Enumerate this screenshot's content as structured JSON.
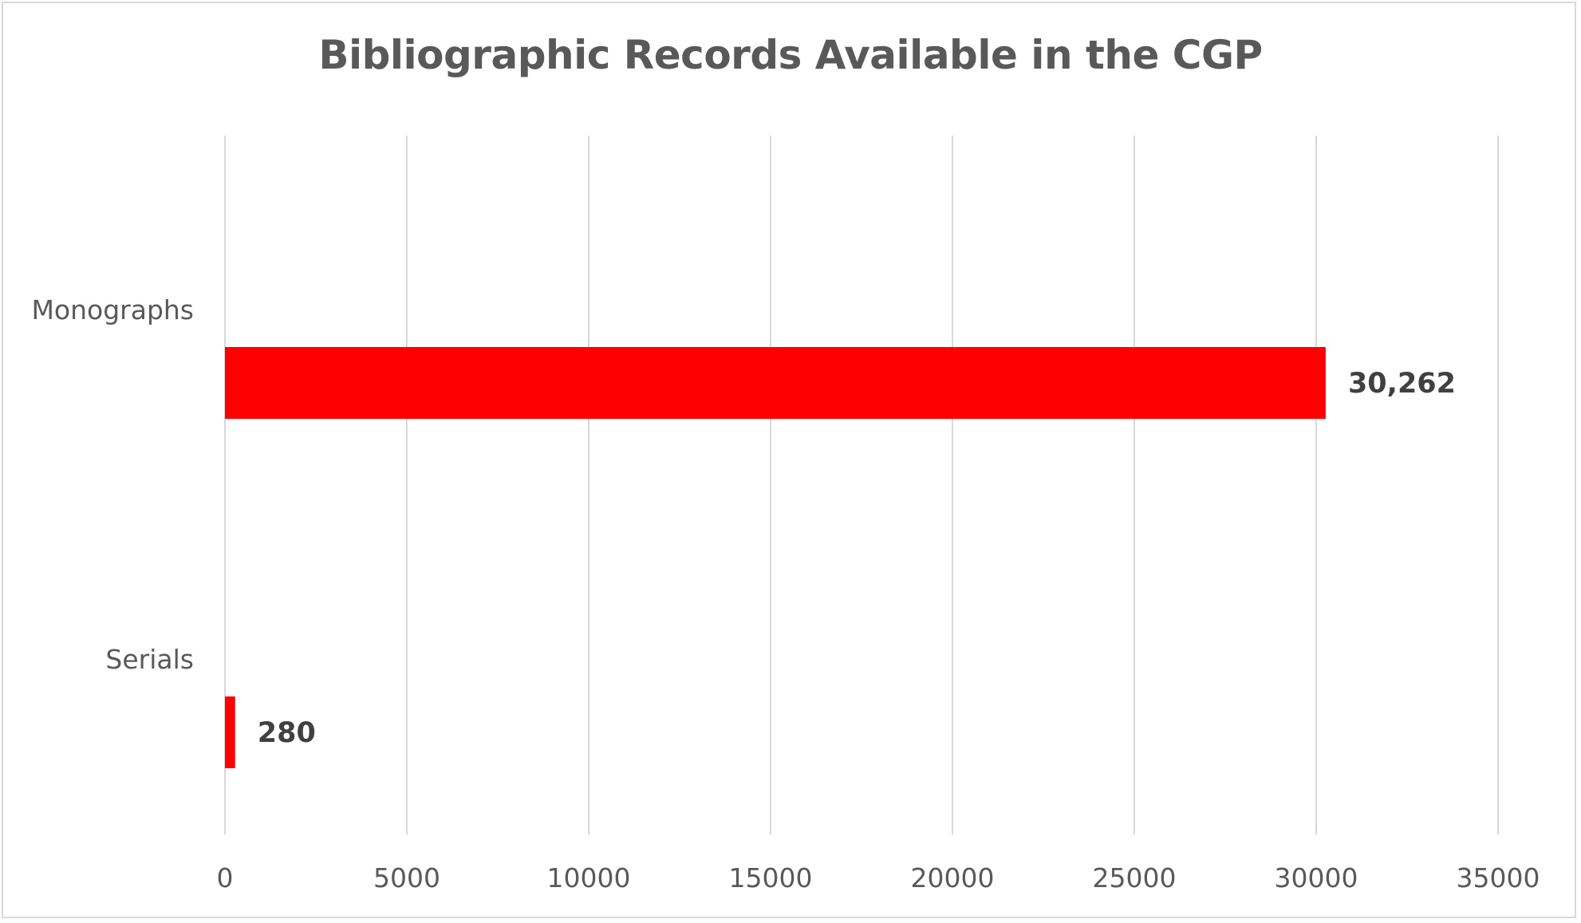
{
  "chart_data": {
    "type": "bar",
    "orientation": "horizontal",
    "title": "Bibliographic Records Available in the CGP",
    "xlabel": "",
    "ylabel": "",
    "categories": [
      "Monographs",
      "Serials"
    ],
    "values": [
      30262,
      280
    ],
    "data_labels": [
      "30,262",
      "280"
    ],
    "xlim": [
      0,
      35000
    ],
    "ticks": [
      0,
      5000,
      10000,
      15000,
      20000,
      25000,
      30000,
      35000
    ],
    "tick_labels": [
      "0",
      "5000",
      "10000",
      "15000",
      "20000",
      "25000",
      "30000",
      "35000"
    ],
    "grid": true,
    "legend": "none",
    "bar_color": "#ff0000",
    "grid_color": "#d9d9d9"
  }
}
